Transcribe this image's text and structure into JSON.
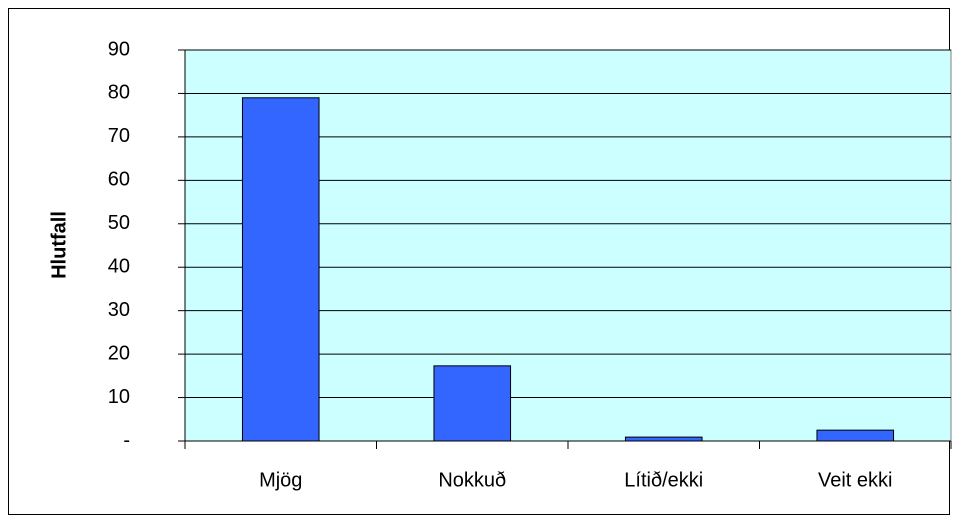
{
  "chart_data": {
    "type": "bar",
    "y_label": "Hlutfall",
    "categories": [
      "Mjög",
      "Nokkuð",
      "Lítið/ekki",
      "Veit ekki"
    ],
    "values": [
      79,
      17.3,
      0.9,
      2.5
    ],
    "color": "#3366ff",
    "plot_background": "#ccffff",
    "ylim": [
      0,
      90
    ],
    "yticks": [
      {
        "value": 0,
        "label": "-"
      },
      10,
      20,
      30,
      40,
      50,
      60,
      70,
      80,
      90
    ],
    "grid": true
  }
}
